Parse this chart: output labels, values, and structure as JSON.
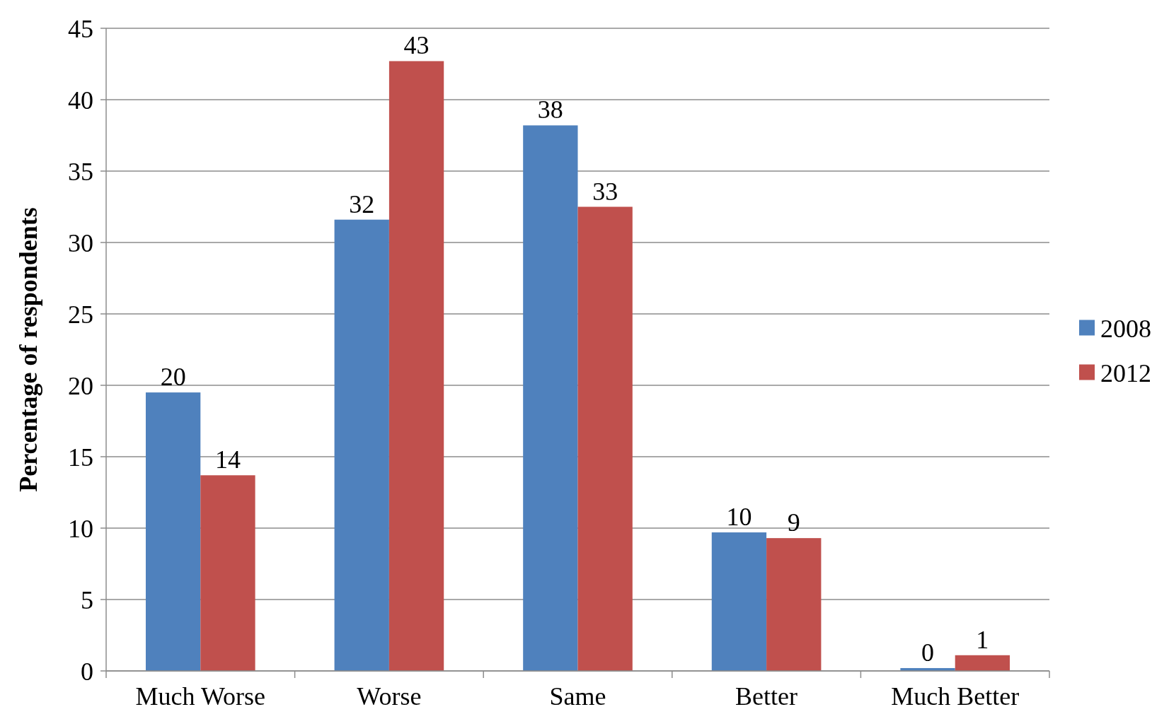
{
  "chart_data": {
    "type": "bar",
    "ylabel": "Percentage of respondents",
    "categories": [
      "Much Worse",
      "Worse",
      "Same",
      "Better",
      "Much Better"
    ],
    "series": [
      {
        "name": "2008",
        "color": "#4f81bd",
        "values": [
          19.5,
          31.6,
          38.2,
          9.7,
          0.2
        ],
        "value_labels": [
          "20",
          "32",
          "38",
          "10",
          "0"
        ]
      },
      {
        "name": "2012",
        "color": "#c0504d",
        "values": [
          13.7,
          42.7,
          32.5,
          9.3,
          1.1
        ],
        "value_labels": [
          "14",
          "43",
          "33",
          "9",
          "1"
        ]
      }
    ],
    "ylim": [
      0,
      45
    ],
    "yticks": [
      0,
      5,
      10,
      15,
      20,
      25,
      30,
      35,
      40,
      45
    ],
    "grid": "y",
    "legend": "right"
  }
}
